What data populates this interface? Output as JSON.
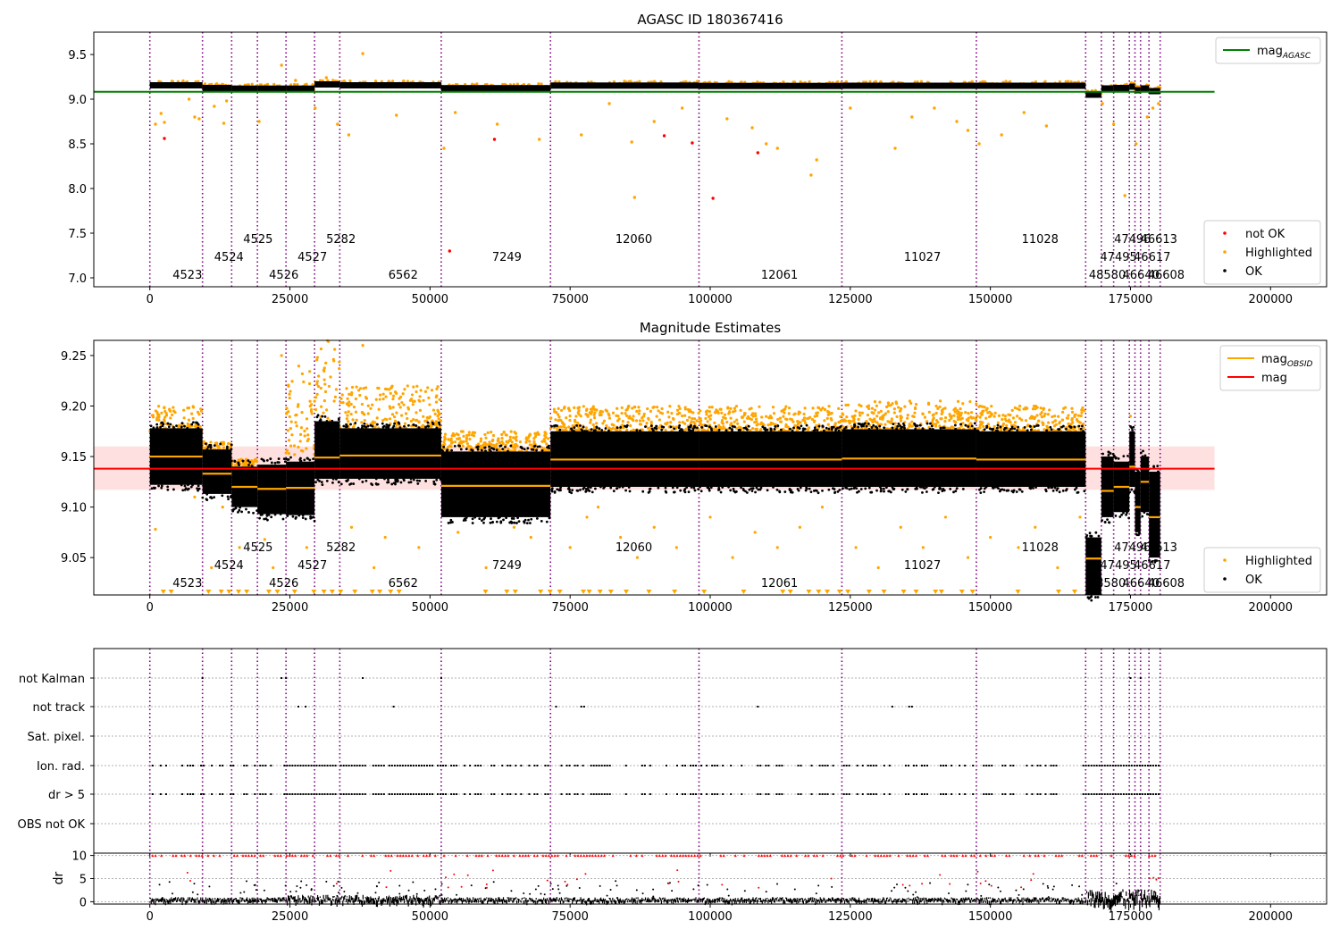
{
  "chart_data": [
    {
      "type": "scatter",
      "title": "AGASC ID 180367416",
      "xlim": [
        -10000,
        210000
      ],
      "ylim": [
        6.9,
        9.75
      ],
      "xticks": [
        0,
        25000,
        50000,
        75000,
        100000,
        125000,
        150000,
        175000,
        200000
      ],
      "yticks": [
        7.0,
        7.5,
        8.0,
        8.5,
        9.0,
        9.5
      ],
      "ytick_labels": [
        "7.0",
        "7.5",
        "8.0",
        "8.5",
        "9.0",
        "9.5"
      ],
      "grid": false,
      "series": [
        {
          "name": "not OK",
          "color": "#ff0000",
          "points": [
            [
              2600,
              8.56
            ],
            [
              53500,
              7.3
            ],
            [
              61500,
              8.55
            ],
            [
              91800,
              8.59
            ],
            [
              96800,
              8.51
            ],
            [
              100500,
              7.89
            ],
            [
              108500,
              8.4
            ]
          ]
        },
        {
          "name": "Highlighted",
          "color": "#ffa500",
          "points": [
            [
              1000,
              8.72
            ],
            [
              2000,
              8.84
            ],
            [
              2600,
              8.74
            ],
            [
              7000,
              9.0
            ],
            [
              8000,
              8.8
            ],
            [
              8800,
              8.78
            ],
            [
              11500,
              8.92
            ],
            [
              13200,
              8.73
            ],
            [
              13700,
              8.98
            ],
            [
              19500,
              8.75
            ],
            [
              23500,
              9.38
            ],
            [
              26000,
              9.21
            ],
            [
              29500,
              8.9
            ],
            [
              31500,
              9.24
            ],
            [
              33500,
              8.72
            ],
            [
              35500,
              8.6
            ],
            [
              38000,
              9.51
            ],
            [
              44000,
              8.82
            ],
            [
              52500,
              8.45
            ],
            [
              54500,
              8.85
            ],
            [
              62000,
              8.72
            ],
            [
              69500,
              8.55
            ],
            [
              77000,
              8.6
            ],
            [
              82000,
              8.95
            ],
            [
              86500,
              7.9
            ],
            [
              86000,
              8.52
            ],
            [
              90000,
              8.75
            ],
            [
              95000,
              8.9
            ],
            [
              103000,
              8.78
            ],
            [
              107500,
              8.68
            ],
            [
              110000,
              8.5
            ],
            [
              112000,
              8.45
            ],
            [
              118000,
              8.15
            ],
            [
              119000,
              8.32
            ],
            [
              125000,
              8.9
            ],
            [
              133000,
              8.45
            ],
            [
              136000,
              8.8
            ],
            [
              140000,
              8.9
            ],
            [
              144000,
              8.75
            ],
            [
              146000,
              8.65
            ],
            [
              148000,
              8.5
            ],
            [
              152000,
              8.6
            ],
            [
              156000,
              8.85
            ],
            [
              160000,
              8.7
            ],
            [
              170000,
              8.95
            ],
            [
              172000,
              8.72
            ],
            [
              174000,
              7.92
            ],
            [
              176000,
              8.5
            ],
            [
              178000,
              8.8
            ],
            [
              179000,
              8.9
            ],
            [
              180000,
              8.95
            ]
          ]
        },
        {
          "name": "OK",
          "color": "#000000",
          "segments": [
            [
              0,
              9400,
              9.155
            ],
            [
              9400,
              14600,
              9.125
            ],
            [
              14600,
              19200,
              9.118
            ],
            [
              19200,
              24300,
              9.118
            ],
            [
              24300,
              29400,
              9.118
            ],
            [
              29400,
              33900,
              9.165
            ],
            [
              33900,
              52000,
              9.155
            ],
            [
              52000,
              71500,
              9.123
            ],
            [
              71500,
              98000,
              9.152
            ],
            [
              98000,
              123500,
              9.148
            ],
            [
              123500,
              147500,
              9.15
            ],
            [
              147500,
              167000,
              9.15
            ],
            [
              167000,
              169800,
              9.05
            ],
            [
              169800,
              172000,
              9.12
            ],
            [
              172000,
              174800,
              9.125
            ],
            [
              174800,
              175800,
              9.14
            ],
            [
              175800,
              176800,
              9.1
            ],
            [
              176800,
              178300,
              9.12
            ],
            [
              178300,
              180300,
              9.09
            ]
          ]
        },
        {
          "name": "mag_AGASC",
          "color": "#008000",
          "type": "hline",
          "y": 9.082,
          "x_range": [
            -10000,
            190000
          ]
        }
      ],
      "legend_top": {
        "placement": "upper right",
        "entries": [
          {
            "name": "mag",
            "sub": "AGASC",
            "color": "#008000",
            "kind": "line"
          }
        ]
      },
      "legend_bottom": {
        "placement": "lower right",
        "entries": [
          {
            "name": "not OK",
            "color": "#ff0000",
            "kind": "dot"
          },
          {
            "name": "Highlighted",
            "color": "#ffa500",
            "kind": "dot"
          },
          {
            "name": "OK",
            "color": "#000000",
            "kind": "dot"
          }
        ]
      }
    },
    {
      "type": "scatter",
      "title": "Magnitude Estimates",
      "xlim": [
        -10000,
        210000
      ],
      "ylim": [
        9.013,
        9.265
      ],
      "xticks": [
        0,
        25000,
        50000,
        75000,
        100000,
        125000,
        150000,
        175000,
        200000
      ],
      "yticks": [
        9.05,
        9.1,
        9.15,
        9.2,
        9.25
      ],
      "ytick_labels": [
        "9.05",
        "9.10",
        "9.15",
        "9.20",
        "9.25"
      ],
      "grid": false,
      "mag": {
        "value": 9.138,
        "band": [
          9.117,
          9.16
        ],
        "color": "#ff0000",
        "x_range": [
          -10000,
          190000
        ]
      },
      "obsid_segments": [
        [
          0,
          9400,
          9.15
        ],
        [
          9400,
          14600,
          9.133
        ],
        [
          14600,
          19200,
          9.12
        ],
        [
          19200,
          24300,
          9.118
        ],
        [
          24300,
          29400,
          9.119
        ],
        [
          29400,
          33900,
          9.149
        ],
        [
          33900,
          52000,
          9.151
        ],
        [
          52000,
          71500,
          9.121
        ],
        [
          71500,
          98000,
          9.147
        ],
        [
          98000,
          123500,
          9.147
        ],
        [
          123500,
          147500,
          9.148
        ],
        [
          147500,
          167000,
          9.147
        ],
        [
          167000,
          169800,
          9.049
        ],
        [
          169800,
          172000,
          9.116
        ],
        [
          172000,
          174800,
          9.12
        ],
        [
          174800,
          175800,
          9.14
        ],
        [
          175800,
          176800,
          9.1
        ],
        [
          176800,
          178300,
          9.125
        ],
        [
          178300,
          180300,
          9.09
        ]
      ],
      "ok_bands": [
        [
          0,
          9400,
          9.122,
          9.178
        ],
        [
          9400,
          14600,
          9.113,
          9.157
        ],
        [
          14600,
          19200,
          9.1,
          9.14
        ],
        [
          19200,
          24300,
          9.093,
          9.142
        ],
        [
          24300,
          29400,
          9.092,
          9.145
        ],
        [
          29400,
          33900,
          9.128,
          9.185
        ],
        [
          33900,
          52000,
          9.128,
          9.178
        ],
        [
          52000,
          71500,
          9.09,
          9.155
        ],
        [
          71500,
          98000,
          9.12,
          9.175
        ],
        [
          98000,
          123500,
          9.12,
          9.175
        ],
        [
          123500,
          147500,
          9.12,
          9.177
        ],
        [
          147500,
          167000,
          9.12,
          9.175
        ],
        [
          167000,
          169800,
          9.013,
          9.07
        ],
        [
          169800,
          172000,
          9.09,
          9.15
        ],
        [
          172000,
          174800,
          9.095,
          9.145
        ],
        [
          174800,
          175800,
          9.12,
          9.175
        ],
        [
          175800,
          176800,
          9.075,
          9.135
        ],
        [
          176800,
          178300,
          9.095,
          9.15
        ],
        [
          178300,
          180300,
          9.05,
          9.135
        ]
      ],
      "highlight_bands": [
        [
          0,
          9400,
          9.175,
          9.2
        ],
        [
          9400,
          14600,
          9.155,
          9.165
        ],
        [
          14600,
          19200,
          9.14,
          9.148
        ],
        [
          24300,
          29400,
          9.15,
          9.24
        ],
        [
          29400,
          33900,
          9.18,
          9.265
        ],
        [
          33900,
          52000,
          9.178,
          9.22
        ],
        [
          52000,
          71500,
          9.155,
          9.175
        ],
        [
          71500,
          98000,
          9.175,
          9.2
        ],
        [
          98000,
          123500,
          9.175,
          9.2
        ],
        [
          123500,
          147500,
          9.177,
          9.205
        ],
        [
          147500,
          167000,
          9.175,
          9.2
        ]
      ],
      "highlight_outliers": [
        [
          1000,
          9.078
        ],
        [
          8000,
          9.11
        ],
        [
          11000,
          9.04
        ],
        [
          13000,
          9.1
        ],
        [
          16000,
          9.06
        ],
        [
          20500,
          9.068
        ],
        [
          22000,
          9.04
        ],
        [
          23500,
          9.25
        ],
        [
          28000,
          9.06
        ],
        [
          36000,
          9.08
        ],
        [
          38000,
          9.26
        ],
        [
          40000,
          9.04
        ],
        [
          42000,
          9.07
        ],
        [
          48000,
          9.06
        ],
        [
          55000,
          9.075
        ],
        [
          60000,
          9.04
        ],
        [
          65000,
          9.08
        ],
        [
          68000,
          9.07
        ],
        [
          75000,
          9.06
        ],
        [
          78000,
          9.09
        ],
        [
          80000,
          9.1
        ],
        [
          84000,
          9.07
        ],
        [
          87000,
          9.05
        ],
        [
          90000,
          9.08
        ],
        [
          94000,
          9.06
        ],
        [
          100000,
          9.09
        ],
        [
          104000,
          9.05
        ],
        [
          108000,
          9.075
        ],
        [
          112000,
          9.06
        ],
        [
          116000,
          9.08
        ],
        [
          120000,
          9.1
        ],
        [
          126000,
          9.06
        ],
        [
          130000,
          9.04
        ],
        [
          134000,
          9.08
        ],
        [
          138000,
          9.06
        ],
        [
          142000,
          9.09
        ],
        [
          146000,
          9.05
        ],
        [
          150000,
          9.07
        ],
        [
          155000,
          9.06
        ],
        [
          158000,
          9.08
        ],
        [
          162000,
          9.04
        ],
        [
          166000,
          9.09
        ],
        [
          175000,
          9.19
        ]
      ],
      "legend_top": {
        "placement": "upper right",
        "entries": [
          {
            "name": "mag",
            "sub": "OBSID",
            "color": "#ffa500",
            "kind": "line"
          },
          {
            "name": "mag",
            "sub": "",
            "color": "#ff0000",
            "kind": "line"
          }
        ]
      },
      "legend_bottom": {
        "placement": "lower right",
        "entries": [
          {
            "name": "Highlighted",
            "color": "#ffa500",
            "kind": "dot"
          },
          {
            "name": "OK",
            "color": "#000000",
            "kind": "dot"
          }
        ]
      }
    },
    {
      "type": "scatter",
      "xlim": [
        -10000,
        210000
      ],
      "xticks": [
        0,
        25000,
        50000,
        75000,
        100000,
        125000,
        150000,
        175000,
        200000
      ],
      "flag_rows": [
        "not Kalman",
        "not track",
        "Sat. pixel.",
        "Ion. rad.",
        "dr > 5",
        "OBS not OK"
      ],
      "grid": "horizontal dotted",
      "flag_points": {
        "not Kalman": [
          9400,
          23500,
          24300,
          38000,
          52000,
          175000,
          176800
        ],
        "not track": [
          26500,
          27800,
          43500,
          72500,
          77000,
          77500,
          108500,
          132500,
          135500,
          136000
        ],
        "Ion. rad.": "periodic",
        "dr > 5": "periodic"
      },
      "dr": {
        "ylim": [
          -0.5,
          10.5
        ],
        "yticks": [
          0,
          5,
          10
        ],
        "ylabel": "dr",
        "clip_value": 10,
        "clip_color": "#ff0000",
        "ok_color": "#000000"
      }
    }
  ],
  "obsid_boundaries": [
    0,
    9400,
    14600,
    19200,
    24300,
    29400,
    33900,
    52000,
    71500,
    98000,
    123500,
    147500,
    167000,
    169800,
    172000,
    174800,
    175800,
    176800,
    178300,
    180300
  ],
  "obsid_labels": [
    {
      "text": "4523",
      "x": 2000,
      "row": 0
    },
    {
      "text": "4524",
      "x": 9400,
      "row": 1
    },
    {
      "text": "4525",
      "x": 14600,
      "row": 2
    },
    {
      "text": "4526",
      "x": 19200,
      "row": 0
    },
    {
      "text": "4527",
      "x": 24300,
      "row": 1
    },
    {
      "text": "5282",
      "x": 29400,
      "row": 2
    },
    {
      "text": "6562",
      "x": 40500,
      "row": 0
    },
    {
      "text": "7249",
      "x": 59000,
      "row": 1
    },
    {
      "text": "12060",
      "x": 81000,
      "row": 2
    },
    {
      "text": "12061",
      "x": 107000,
      "row": 0
    },
    {
      "text": "11027",
      "x": 132500,
      "row": 1
    },
    {
      "text": "11028",
      "x": 153500,
      "row": 2
    },
    {
      "text": "48580",
      "x": 165500,
      "row": 0
    },
    {
      "text": "47495",
      "x": 167500,
      "row": 1
    },
    {
      "text": "47496",
      "x": 170000,
      "row": 2
    },
    {
      "text": "46640",
      "x": 171500,
      "row": 0
    },
    {
      "text": "46617",
      "x": 173500,
      "row": 1
    },
    {
      "text": "46613",
      "x": 174700,
      "row": 2
    },
    {
      "text": "46608",
      "x": 176000,
      "row": 0
    }
  ]
}
